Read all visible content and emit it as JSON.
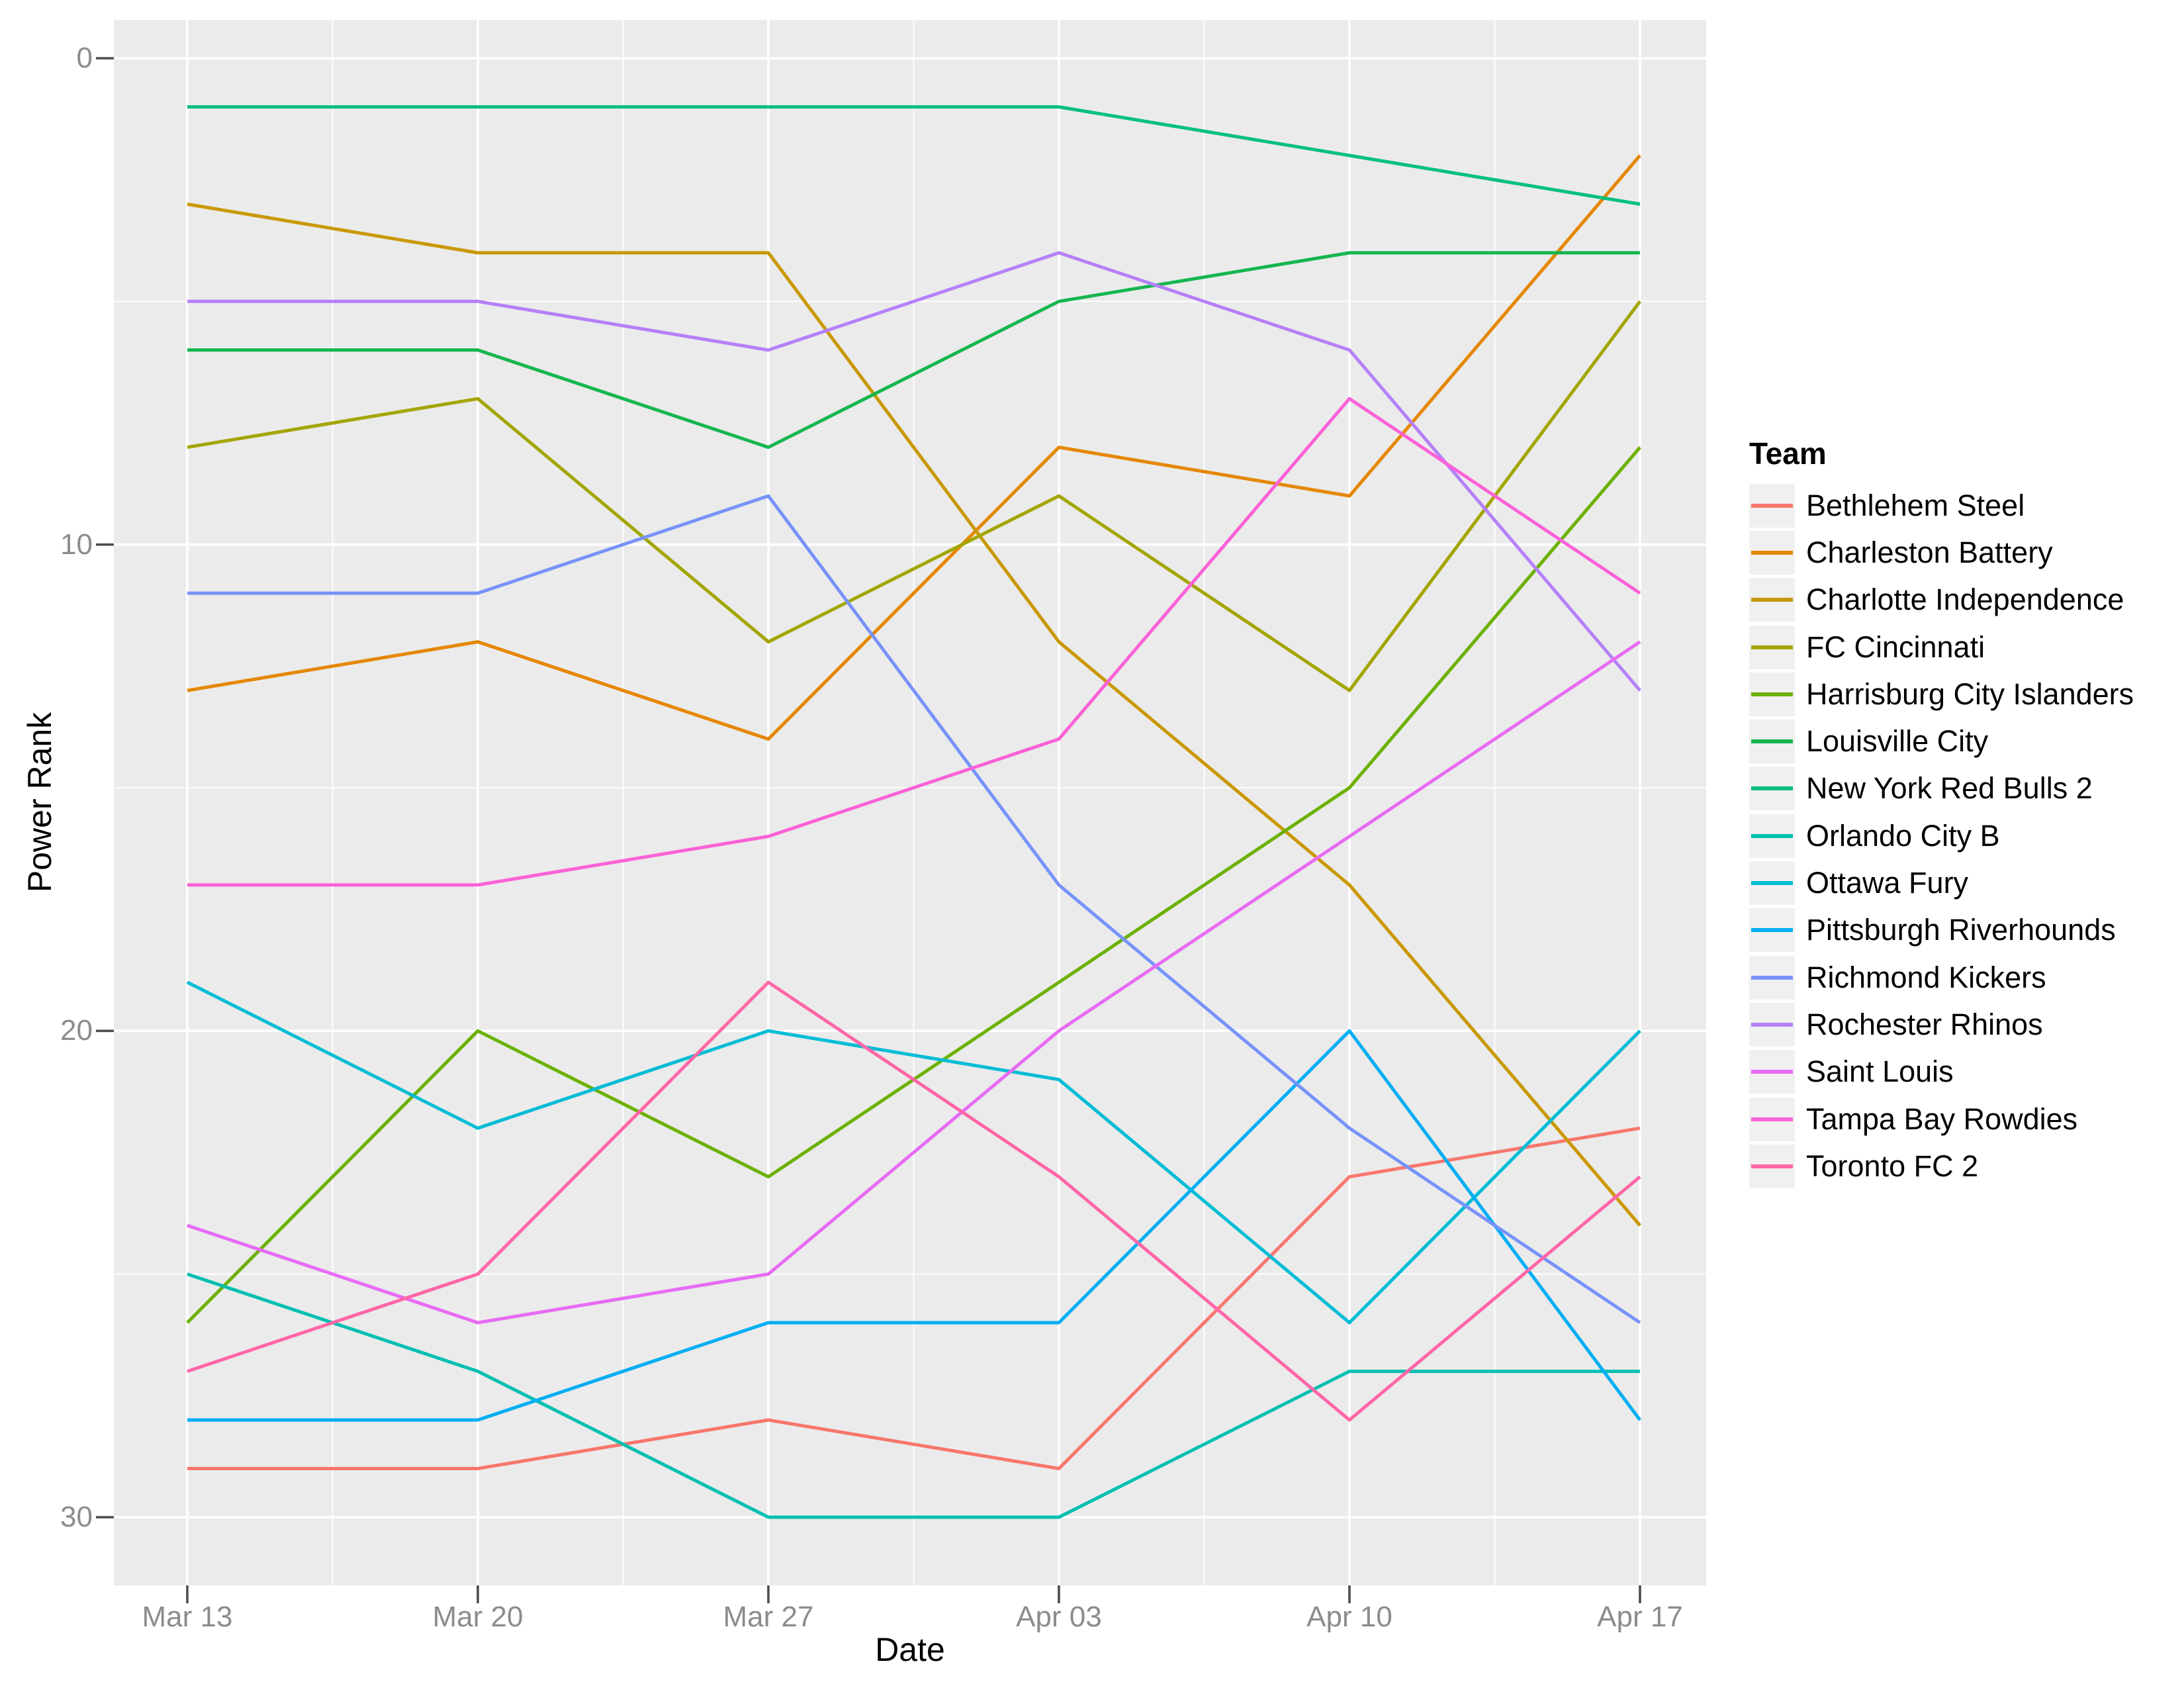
{
  "chart_data": {
    "type": "line",
    "title": "",
    "xlabel": "Date",
    "ylabel": "Power Rank",
    "legend_title": "Team",
    "legend_position": "right",
    "grid": true,
    "y_axis_reversed": true,
    "ylim": [
      0,
      30
    ],
    "y_tick_labels": [
      "0",
      "10",
      "20",
      "30"
    ],
    "y_major_ticks": [
      0,
      10,
      20,
      30
    ],
    "y_minor_ticks": [
      5,
      15,
      25
    ],
    "x_tick_labels": [
      "Mar 13",
      "Mar 20",
      "Mar 27",
      "Apr 03",
      "Apr 10",
      "Apr 17"
    ],
    "categories": [
      "Mar 13",
      "Mar 20",
      "Mar 27",
      "Apr 03",
      "Apr 10",
      "Apr 17"
    ],
    "series": [
      {
        "name": "Bethlehem Steel",
        "color": "#F8766D",
        "values": [
          29,
          29,
          28,
          29,
          23,
          22
        ]
      },
      {
        "name": "Charleston Battery",
        "color": "#E58700",
        "values": [
          13,
          12,
          14,
          8,
          9,
          2
        ]
      },
      {
        "name": "Charlotte Independence",
        "color": "#C99800",
        "values": [
          3,
          4,
          4,
          12,
          17,
          24
        ]
      },
      {
        "name": "FC Cincinnati",
        "color": "#A3A500",
        "values": [
          8,
          7,
          12,
          9,
          13,
          5
        ]
      },
      {
        "name": "Harrisburg City Islanders",
        "color": "#6BB100",
        "values": [
          26,
          20,
          23,
          19,
          15,
          8
        ]
      },
      {
        "name": "Louisville City",
        "color": "#15B64E",
        "values": [
          6,
          6,
          8,
          5,
          4,
          4
        ]
      },
      {
        "name": "New York Red Bulls 2",
        "color": "#00BF7E",
        "values": [
          1,
          1,
          1,
          1,
          2,
          3
        ]
      },
      {
        "name": "Orlando City B",
        "color": "#00BFB1",
        "values": [
          25,
          27,
          30,
          30,
          27,
          27
        ]
      },
      {
        "name": "Ottawa Fury",
        "color": "#00BCD5",
        "values": [
          19,
          22,
          20,
          21,
          26,
          20
        ]
      },
      {
        "name": "Pittsburgh Riverhounds",
        "color": "#00AEF3",
        "values": [
          28,
          28,
          26,
          26,
          20,
          28
        ]
      },
      {
        "name": "Richmond Kickers",
        "color": "#7793FA",
        "values": [
          11,
          11,
          9,
          17,
          22,
          26
        ]
      },
      {
        "name": "Rochester Rhinos",
        "color": "#B580F8",
        "values": [
          5,
          5,
          6,
          4,
          6,
          13
        ]
      },
      {
        "name": "Saint Louis",
        "color": "#E76BF3",
        "values": [
          24,
          26,
          25,
          20,
          16,
          12
        ]
      },
      {
        "name": "Tampa Bay Rowdies",
        "color": "#FB61D7",
        "values": [
          17,
          17,
          16,
          14,
          7,
          11
        ]
      },
      {
        "name": "Toronto FC 2",
        "color": "#FF66A8",
        "values": [
          27,
          25,
          19,
          23,
          28,
          23
        ]
      }
    ],
    "style": {
      "panel_bg": "#EBEBEB",
      "grid_color": "#FFFFFF",
      "tick_mark_color": "#4D4D4D",
      "axis_text_color": "#8C8C8C",
      "legend_key_bg": "#F0F0F0"
    }
  }
}
